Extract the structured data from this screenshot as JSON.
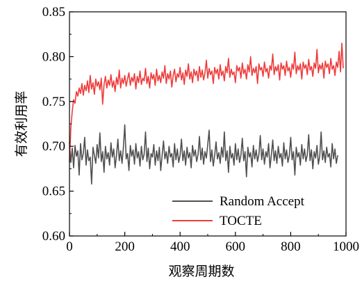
{
  "chart_data": {
    "type": "line",
    "title": "",
    "xlabel": "观察周期数",
    "ylabel": "有效利用率",
    "xlim": [
      0,
      1000
    ],
    "ylim": [
      0.6,
      0.85
    ],
    "x_ticks": [
      0,
      200,
      400,
      600,
      800,
      1000
    ],
    "x_tick_labels": [
      "0",
      "200",
      "400",
      "600",
      "800",
      "1000"
    ],
    "y_ticks": [
      0.6,
      0.65,
      0.7,
      0.75,
      0.8,
      0.85
    ],
    "y_tick_labels": [
      "0.60",
      "0.65",
      "0.70",
      "0.75",
      "0.80",
      "0.85"
    ],
    "grid": false,
    "legend_position": "bottom-right",
    "x_step": 5,
    "series": [
      {
        "name": "Random Accept",
        "color": "#505050",
        "x_start": 0,
        "values": [
          0.705,
          0.682,
          0.698,
          0.676,
          0.701,
          0.689,
          0.695,
          0.668,
          0.703,
          0.685,
          0.692,
          0.71,
          0.679,
          0.696,
          0.684,
          0.688,
          0.658,
          0.699,
          0.69,
          0.681,
          0.702,
          0.687,
          0.715,
          0.683,
          0.694,
          0.671,
          0.7,
          0.686,
          0.693,
          0.679,
          0.704,
          0.688,
          0.697,
          0.676,
          0.69,
          0.708,
          0.684,
          0.695,
          0.681,
          0.699,
          0.724,
          0.686,
          0.692,
          0.673,
          0.701,
          0.689,
          0.696,
          0.68,
          0.703,
          0.687,
          0.694,
          0.678,
          0.7,
          0.685,
          0.691,
          0.716,
          0.683,
          0.698,
          0.675,
          0.692,
          0.688,
          0.702,
          0.679,
          0.695,
          0.684,
          0.699,
          0.673,
          0.69,
          0.706,
          0.686,
          0.694,
          0.681,
          0.7,
          0.688,
          0.692,
          0.677,
          0.703,
          0.685,
          0.697,
          0.682,
          0.69,
          0.708,
          0.684,
          0.695,
          0.679,
          0.699,
          0.687,
          0.693,
          0.676,
          0.701,
          0.689,
          0.696,
          0.683,
          0.691,
          0.711,
          0.685,
          0.698,
          0.68,
          0.694,
          0.687,
          0.702,
          0.718,
          0.683,
          0.696,
          0.678,
          0.69,
          0.705,
          0.686,
          0.693,
          0.681,
          0.699,
          0.688,
          0.716,
          0.684,
          0.695,
          0.671,
          0.7,
          0.687,
          0.692,
          0.679,
          0.703,
          0.685,
          0.697,
          0.682,
          0.69,
          0.709,
          0.684,
          0.694,
          0.666,
          0.699,
          0.688,
          0.693,
          0.677,
          0.701,
          0.686,
          0.696,
          0.683,
          0.691,
          0.712,
          0.685,
          0.697,
          0.68,
          0.694,
          0.688,
          0.703,
          0.676,
          0.69,
          0.707,
          0.684,
          0.695,
          0.681,
          0.7,
          0.687,
          0.692,
          0.678,
          0.704,
          0.686,
          0.696,
          0.682,
          0.69,
          0.71,
          0.685,
          0.694,
          0.668,
          0.699,
          0.688,
          0.693,
          0.679,
          0.702,
          0.686,
          0.697,
          0.683,
          0.691,
          0.713,
          0.684,
          0.696,
          0.675,
          0.694,
          0.687,
          0.701,
          0.68,
          0.689,
          0.716,
          0.685,
          0.695,
          0.682,
          0.699,
          0.688,
          0.692,
          0.677,
          0.703,
          0.686,
          0.697,
          0.681,
          0.69
        ]
      },
      {
        "name": "TOCTE",
        "color": "#ee3b3b",
        "x_start": 0,
        "values": [
          0.682,
          0.721,
          0.739,
          0.752,
          0.748,
          0.761,
          0.756,
          0.765,
          0.759,
          0.77,
          0.757,
          0.768,
          0.762,
          0.773,
          0.76,
          0.779,
          0.764,
          0.771,
          0.758,
          0.775,
          0.767,
          0.772,
          0.763,
          0.776,
          0.747,
          0.769,
          0.778,
          0.765,
          0.774,
          0.768,
          0.78,
          0.766,
          0.773,
          0.761,
          0.777,
          0.769,
          0.785,
          0.765,
          0.776,
          0.77,
          0.779,
          0.767,
          0.775,
          0.782,
          0.768,
          0.777,
          0.772,
          0.781,
          0.764,
          0.778,
          0.771,
          0.784,
          0.769,
          0.776,
          0.773,
          0.787,
          0.77,
          0.778,
          0.765,
          0.782,
          0.775,
          0.78,
          0.768,
          0.786,
          0.773,
          0.779,
          0.771,
          0.783,
          0.776,
          0.79,
          0.77,
          0.781,
          0.775,
          0.784,
          0.766,
          0.779,
          0.786,
          0.772,
          0.781,
          0.777,
          0.788,
          0.774,
          0.782,
          0.769,
          0.785,
          0.778,
          0.792,
          0.775,
          0.783,
          0.771,
          0.786,
          0.779,
          0.784,
          0.773,
          0.789,
          0.777,
          0.785,
          0.774,
          0.782,
          0.796,
          0.776,
          0.787,
          0.78,
          0.784,
          0.77,
          0.788,
          0.781,
          0.786,
          0.775,
          0.791,
          0.779,
          0.784,
          0.773,
          0.789,
          0.782,
          0.798,
          0.777,
          0.786,
          0.78,
          0.783,
          0.771,
          0.79,
          0.784,
          0.788,
          0.776,
          0.793,
          0.781,
          0.786,
          0.775,
          0.791,
          0.783,
          0.8,
          0.779,
          0.787,
          0.782,
          0.789,
          0.77,
          0.792,
          0.785,
          0.788,
          0.778,
          0.794,
          0.783,
          0.787,
          0.776,
          0.79,
          0.785,
          0.803,
          0.78,
          0.789,
          0.784,
          0.791,
          0.774,
          0.793,
          0.786,
          0.79,
          0.779,
          0.795,
          0.784,
          0.788,
          0.777,
          0.792,
          0.786,
          0.805,
          0.781,
          0.79,
          0.785,
          0.792,
          0.775,
          0.794,
          0.787,
          0.791,
          0.78,
          0.797,
          0.785,
          0.789,
          0.778,
          0.793,
          0.787,
          0.808,
          0.782,
          0.791,
          0.786,
          0.793,
          0.776,
          0.795,
          0.788,
          0.792,
          0.781,
          0.798,
          0.786,
          0.79,
          0.779,
          0.794,
          0.788,
          0.806,
          0.783,
          0.815,
          0.787
        ]
      }
    ]
  }
}
